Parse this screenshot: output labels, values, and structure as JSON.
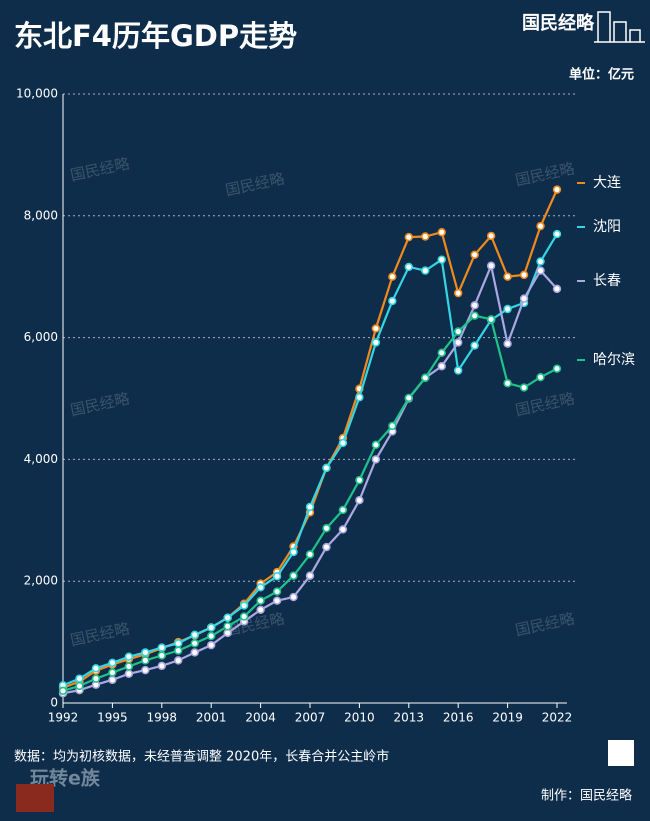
{
  "chart_data": {
    "type": "line",
    "title": "东北F4历年GDP走势",
    "unit_label": "单位：亿元",
    "brand": "国民经略",
    "watermark": "国民经略",
    "note": "数据：均为初核数据，未经普查调整   2020年，长春合并公主岭市",
    "credit": "制作：国民经略",
    "corner_brand": "玩转e族",
    "x": [
      1992,
      1993,
      1994,
      1995,
      1996,
      1997,
      1998,
      1999,
      2000,
      2001,
      2002,
      2003,
      2004,
      2005,
      2006,
      2007,
      2008,
      2009,
      2010,
      2011,
      2012,
      2013,
      2014,
      2015,
      2016,
      2017,
      2018,
      2019,
      2020,
      2021,
      2022
    ],
    "xlim": [
      1992,
      2022
    ],
    "xticks": [
      1992,
      1995,
      1998,
      2001,
      2004,
      2007,
      2010,
      2013,
      2016,
      2019,
      2022
    ],
    "ylim": [
      0,
      10000
    ],
    "yticks": [
      0,
      {
        "value": 2000,
        "label": "2,000"
      },
      {
        "value": 4000,
        "label": "4,000"
      },
      {
        "value": 6000,
        "label": "6,000"
      },
      {
        "value": 8000,
        "label": "8,000"
      },
      {
        "value": 10000,
        "label": "10,000"
      }
    ],
    "grid": true,
    "series": [
      {
        "name": "大连",
        "color": "#f08a1c",
        "values": [
          250,
          350,
          530,
          630,
          720,
          800,
          900,
          1000,
          1110,
          1240,
          1400,
          1630,
          1960,
          2150,
          2570,
          3130,
          3860,
          4350,
          5160,
          6150,
          7000,
          7650,
          7660,
          7730,
          6730,
          7360,
          7670,
          7000,
          7030,
          7830,
          8430
        ]
      },
      {
        "name": "沈阳",
        "color": "#35d6e4",
        "values": [
          290,
          400,
          570,
          660,
          760,
          830,
          910,
          980,
          1120,
          1240,
          1400,
          1600,
          1900,
          2080,
          2480,
          3220,
          3860,
          4270,
          5020,
          5920,
          6600,
          7160,
          7100,
          7280,
          5460,
          5870,
          6290,
          6470,
          6570,
          7250,
          7700
        ]
      },
      {
        "name": "长春",
        "color": "#aba8e2",
        "values": [
          160,
          210,
          300,
          380,
          480,
          540,
          610,
          700,
          830,
          950,
          1150,
          1340,
          1530,
          1680,
          1740,
          2090,
          2560,
          2850,
          3330,
          4000,
          4460,
          5000,
          5340,
          5530,
          5920,
          6530,
          7180,
          5900,
          6640,
          7100,
          6800
        ]
      },
      {
        "name": "哈尔滨",
        "color": "#1fc28a",
        "values": [
          200,
          280,
          400,
          500,
          600,
          700,
          780,
          860,
          980,
          1100,
          1260,
          1420,
          1680,
          1830,
          2090,
          2440,
          2870,
          3170,
          3660,
          4240,
          4550,
          5010,
          5340,
          5750,
          6100,
          6360,
          6300,
          5250,
          5180,
          5350,
          5490
        ]
      }
    ]
  }
}
